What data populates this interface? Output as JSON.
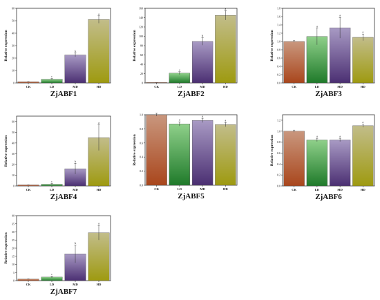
{
  "chart_data": [
    {
      "type": "bar",
      "title": "ZjABF1",
      "ylabel": "Relative expression",
      "categories": [
        "CK",
        "LD",
        "MD",
        "HD"
      ],
      "values": [
        1.0,
        3.0,
        22.5,
        51.0
      ],
      "errors": [
        0.1,
        0.5,
        1.5,
        3.0
      ],
      "sig_labels": [
        "",
        "c",
        "b",
        "a"
      ],
      "ylim": [
        0,
        60
      ],
      "yticks": [
        "0",
        "10",
        "20",
        "30",
        "40",
        "50",
        "60"
      ]
    },
    {
      "type": "bar",
      "title": "ZjABF2",
      "ylabel": "Relative expression",
      "categories": [
        "CK",
        "LD",
        "MD",
        "HD"
      ],
      "values": [
        1.0,
        21.0,
        89.0,
        145.0
      ],
      "errors": [
        0.2,
        3.0,
        8.0,
        10.0
      ],
      "sig_labels": [
        "",
        "c",
        "b",
        "a"
      ],
      "ylim": [
        0,
        160
      ],
      "yticks": [
        "0",
        "20",
        "40",
        "60",
        "80",
        "100",
        "120",
        "140",
        "160"
      ]
    },
    {
      "type": "bar",
      "title": "ZjABF3",
      "ylabel": "Relative expression",
      "categories": [
        "CK",
        "LD",
        "MD",
        "HD"
      ],
      "values": [
        1.0,
        1.12,
        1.33,
        1.1
      ],
      "errors": [
        0.02,
        0.2,
        0.25,
        0.08
      ],
      "sig_labels": [
        "",
        "a",
        "a",
        "a"
      ],
      "ylim": [
        0,
        1.8
      ],
      "yticks": [
        "0.0",
        "0.2",
        "0.4",
        "0.6",
        "0.8",
        "1.0",
        "1.2",
        "1.4",
        "1.6",
        "1.8"
      ]
    },
    {
      "type": "bar",
      "title": "ZjABF4",
      "ylabel": "Relative expression",
      "categories": [
        "CK",
        "LD",
        "MD",
        "HD"
      ],
      "values": [
        1.0,
        1.6,
        16.0,
        45.0
      ],
      "errors": [
        0.1,
        0.6,
        5.0,
        12.0
      ],
      "sig_labels": [
        "",
        "c",
        "b",
        "a"
      ],
      "ylim": [
        0,
        65
      ],
      "yticks": [
        "0",
        "10",
        "20",
        "30",
        "40",
        "50",
        "60"
      ]
    },
    {
      "type": "bar",
      "title": "ZjABF5",
      "ylabel": "Relative expression",
      "categories": [
        "CK",
        "LD",
        "MD",
        "HD"
      ],
      "values": [
        1.0,
        0.87,
        0.92,
        0.86
      ],
      "errors": [
        0.02,
        0.03,
        0.03,
        0.03
      ],
      "sig_labels": [
        "",
        "a",
        "a",
        "a"
      ],
      "ylim": [
        0,
        1.0
      ],
      "yticks": [
        "0.0",
        "0.2",
        "0.4",
        "0.6",
        "0.8",
        "1.0"
      ]
    },
    {
      "type": "bar",
      "title": "ZjABF6",
      "ylabel": "Relative expression",
      "categories": [
        "CK",
        "LD",
        "MD",
        "HD"
      ],
      "values": [
        1.0,
        0.84,
        0.84,
        1.1
      ],
      "errors": [
        0.02,
        0.03,
        0.03,
        0.03
      ],
      "sig_labels": [
        "",
        "a",
        "a",
        "a"
      ],
      "ylim": [
        0,
        1.3
      ],
      "yticks": [
        "0.0",
        "0.2",
        "0.4",
        "0.6",
        "0.8",
        "1.0",
        "1.2"
      ]
    },
    {
      "type": "bar",
      "title": "ZjABF7",
      "ylabel": "Relative expression",
      "categories": [
        "CK",
        "LD",
        "MD",
        "HD"
      ],
      "values": [
        1.0,
        2.2,
        16.5,
        29.5
      ],
      "errors": [
        0.1,
        0.5,
        5.5,
        4.5
      ],
      "sig_labels": [
        "",
        "c",
        "b",
        "a"
      ],
      "ylim": [
        0,
        40
      ],
      "yticks": [
        "0",
        "5",
        "10",
        "15",
        "20",
        "25",
        "30",
        "35",
        "40"
      ]
    }
  ],
  "colors": {
    "CK": [
      "#c9977e",
      "#a9461c"
    ],
    "LD": [
      "#8fd08a",
      "#1f7a2a"
    ],
    "MD": [
      "#a89ac4",
      "#4b2f72"
    ],
    "HD": [
      "#c2bd8a",
      "#9e9a10"
    ],
    "axis": "#333333",
    "text": "#111111"
  }
}
